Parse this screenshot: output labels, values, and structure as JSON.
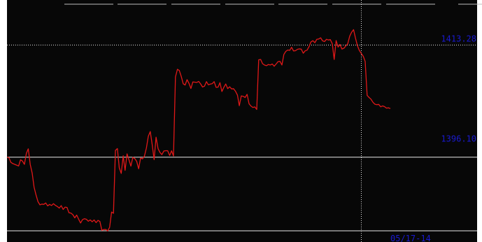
{
  "colors": {
    "background": "#070707",
    "line": "#e01818",
    "reference_line": "#e8e8e8",
    "crosshair": "#e8e8e8",
    "label": "#1a1ad0"
  },
  "chart_data": {
    "type": "line",
    "title": "",
    "xlabel": "",
    "ylabel": "",
    "ylim": [
      1383.0,
      1419.0
    ],
    "grid": false,
    "reference_value": 1396.1,
    "crosshair_value": 1413.28,
    "crosshair_index": 183,
    "y_tick_labels": [
      "1413.28",
      "1396.10"
    ],
    "x_tick_labels": [
      "05/17-14"
    ],
    "series": [
      {
        "values": [
          1396.09,
          1396.02,
          1395.31,
          1395.12,
          1395.0,
          1394.88,
          1394.75,
          1395.71,
          1395.5,
          1395.0,
          1396.69,
          1397.38,
          1394.99,
          1393.66,
          1391.51,
          1390.32,
          1389.29,
          1388.8,
          1388.91,
          1388.87,
          1389.09,
          1388.65,
          1388.86,
          1388.7,
          1388.98,
          1388.72,
          1388.54,
          1388.3,
          1388.68,
          1388.09,
          1388.45,
          1388.4,
          1387.59,
          1387.54,
          1387.3,
          1386.8,
          1387.23,
          1386.6,
          1386.02,
          1386.53,
          1386.67,
          1386.59,
          1386.29,
          1386.49,
          1386.2,
          1386.49,
          1386.07,
          1386.42,
          1386.25,
          1384.9,
          1385.02,
          1385.03,
          1384.8,
          1385.36,
          1387.69,
          1387.51,
          1397.13,
          1397.42,
          1394.48,
          1393.62,
          1396.31,
          1394.08,
          1396.61,
          1395.67,
          1394.73,
          1396.08,
          1395.88,
          1395.46,
          1394.33,
          1395.99,
          1395.84,
          1396.29,
          1397.52,
          1399.3,
          1400.02,
          1398.0,
          1395.73,
          1399.16,
          1397.42,
          1396.84,
          1396.49,
          1397.05,
          1397.09,
          1397.09,
          1396.37,
          1397.08,
          1396.29,
          1408.39,
          1409.56,
          1409.38,
          1408.47,
          1407.34,
          1407.15,
          1407.97,
          1407.4,
          1406.62,
          1407.63,
          1407.59,
          1407.55,
          1407.71,
          1407.32,
          1406.85,
          1406.98,
          1407.68,
          1407.19,
          1407.29,
          1407.36,
          1407.68,
          1406.81,
          1406.83,
          1407.51,
          1406.15,
          1406.81,
          1407.31,
          1406.6,
          1406.88,
          1406.55,
          1406.59,
          1406.21,
          1405.62,
          1403.99,
          1405.49,
          1405.43,
          1405.24,
          1405.72,
          1404.29,
          1403.94,
          1403.72,
          1403.8,
          1403.41,
          1411.02,
          1411.07,
          1410.43,
          1410.21,
          1410.12,
          1410.3,
          1410.23,
          1410.38,
          1410.03,
          1410.38,
          1410.74,
          1410.78,
          1410.22,
          1411.84,
          1412.3,
          1412.52,
          1412.46,
          1412.93,
          1412.38,
          1412.41,
          1412.63,
          1412.69,
          1412.65,
          1412.02,
          1412.39,
          1412.5,
          1413.04,
          1413.76,
          1413.94,
          1413.64,
          1414.15,
          1414.21,
          1414.38,
          1413.92,
          1413.81,
          1414.16,
          1414.05,
          1414.1,
          1413.48,
          1411.07,
          1413.96,
          1412.97,
          1413.36,
          1412.67,
          1412.8,
          1413.14,
          1413.48,
          1414.64,
          1415.24,
          1415.64,
          1414.32,
          1413.19,
          1412.44,
          1411.98,
          1411.55,
          1410.77,
          1405.57,
          1405.24,
          1404.99,
          1404.51,
          1404.21,
          1404.14,
          1404.18,
          1403.82,
          1403.96,
          1403.84,
          1403.61,
          1403.67,
          1403.55
        ]
      }
    ]
  }
}
